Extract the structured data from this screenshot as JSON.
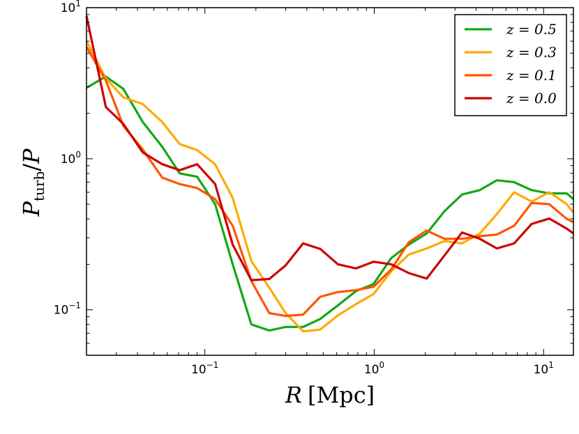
{
  "chart_data": {
    "type": "line",
    "xscale": "log",
    "yscale": "log",
    "xlim": [
      0.02,
      15
    ],
    "ylim": [
      0.05,
      10
    ],
    "xlabel": "R [Mpc]",
    "ylabel": "P_turb / P",
    "x_ticks": [
      {
        "value": 0.1,
        "base": "10",
        "exp": "−1"
      },
      {
        "value": 1,
        "base": "10",
        "exp": "0"
      },
      {
        "value": 10,
        "base": "10",
        "exp": "1"
      }
    ],
    "y_ticks": [
      {
        "value": 0.1,
        "base": "10",
        "exp": "−1"
      },
      {
        "value": 1,
        "base": "10",
        "exp": "0"
      },
      {
        "value": 10,
        "base": "10",
        "exp": "1"
      }
    ],
    "legend_position": "top-right",
    "series": [
      {
        "name": "z = 0.5",
        "color": "#13a813",
        "x": [
          0.02,
          0.026,
          0.033,
          0.043,
          0.056,
          0.071,
          0.09,
          0.115,
          0.146,
          0.188,
          0.24,
          0.3,
          0.38,
          0.48,
          0.61,
          0.78,
          0.99,
          1.26,
          1.6,
          2.04,
          2.6,
          3.3,
          4.2,
          5.3,
          6.7,
          8.5,
          10.8,
          13.7,
          15
        ],
        "y": [
          2.95,
          3.5,
          2.9,
          1.75,
          1.2,
          0.8,
          0.76,
          0.5,
          0.2,
          0.08,
          0.073,
          0.077,
          0.077,
          0.087,
          0.107,
          0.133,
          0.148,
          0.22,
          0.27,
          0.32,
          0.45,
          0.58,
          0.62,
          0.72,
          0.7,
          0.62,
          0.59,
          0.59,
          0.54
        ]
      },
      {
        "name": "z = 0.3",
        "color": "#ffaa00",
        "x": [
          0.02,
          0.026,
          0.033,
          0.043,
          0.056,
          0.071,
          0.09,
          0.115,
          0.146,
          0.188,
          0.24,
          0.3,
          0.38,
          0.48,
          0.61,
          0.78,
          0.99,
          1.26,
          1.6,
          2.04,
          2.6,
          3.3,
          4.2,
          5.3,
          6.7,
          8.5,
          10.8,
          13.7,
          15
        ],
        "y": [
          6.0,
          3.4,
          2.55,
          2.3,
          1.75,
          1.25,
          1.14,
          0.92,
          0.55,
          0.21,
          0.14,
          0.095,
          0.072,
          0.074,
          0.092,
          0.109,
          0.127,
          0.18,
          0.232,
          0.255,
          0.285,
          0.275,
          0.32,
          0.43,
          0.6,
          0.52,
          0.6,
          0.5,
          0.44
        ]
      },
      {
        "name": "z = 0.1",
        "color": "#ff5500",
        "x": [
          0.02,
          0.026,
          0.033,
          0.043,
          0.056,
          0.071,
          0.09,
          0.115,
          0.146,
          0.188,
          0.24,
          0.3,
          0.38,
          0.48,
          0.61,
          0.78,
          0.99,
          1.26,
          1.6,
          2.04,
          2.6,
          3.3,
          4.2,
          5.3,
          6.7,
          8.5,
          10.8,
          13.7,
          15
        ],
        "y": [
          5.5,
          3.3,
          1.65,
          1.15,
          0.75,
          0.68,
          0.64,
          0.54,
          0.36,
          0.155,
          0.095,
          0.091,
          0.093,
          0.122,
          0.131,
          0.135,
          0.142,
          0.185,
          0.28,
          0.335,
          0.295,
          0.295,
          0.307,
          0.315,
          0.36,
          0.51,
          0.5,
          0.4,
          0.38
        ]
      },
      {
        "name": "z = 0.0",
        "color": "#cc0000",
        "x": [
          0.02,
          0.026,
          0.033,
          0.043,
          0.056,
          0.071,
          0.09,
          0.115,
          0.146,
          0.188,
          0.24,
          0.3,
          0.38,
          0.48,
          0.61,
          0.78,
          0.99,
          1.26,
          1.6,
          2.04,
          2.6,
          3.3,
          4.2,
          5.3,
          6.7,
          8.5,
          10.8,
          13.7,
          15
        ],
        "y": [
          8.8,
          2.2,
          1.7,
          1.1,
          0.92,
          0.84,
          0.92,
          0.68,
          0.27,
          0.157,
          0.16,
          0.197,
          0.275,
          0.253,
          0.2,
          0.188,
          0.208,
          0.2,
          0.175,
          0.161,
          0.229,
          0.325,
          0.295,
          0.255,
          0.275,
          0.37,
          0.402,
          0.345,
          0.32
        ]
      }
    ]
  }
}
